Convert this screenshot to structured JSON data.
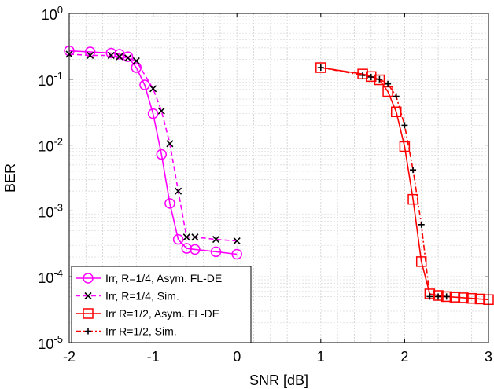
{
  "chart_data": {
    "type": "line",
    "xlabel": "SNR [dB]",
    "ylabel": "BER",
    "xlim": [
      -2,
      3
    ],
    "ylim": [
      1e-05,
      1
    ],
    "yscale": "log",
    "grid": true,
    "legend_position": "bottom-left",
    "xticks": [
      {
        "value": -2,
        "label": "-2"
      },
      {
        "value": -1,
        "label": "-1"
      },
      {
        "value": 0,
        "label": "0"
      },
      {
        "value": 1,
        "label": "1"
      },
      {
        "value": 2,
        "label": "2"
      },
      {
        "value": 3,
        "label": "3"
      }
    ],
    "yticks": [
      {
        "value": 1,
        "base": "10",
        "exp": "0"
      },
      {
        "value": 0.1,
        "base": "10",
        "exp": "-1"
      },
      {
        "value": 0.01,
        "base": "10",
        "exp": "-2"
      },
      {
        "value": 0.001,
        "base": "10",
        "exp": "-3"
      },
      {
        "value": 0.0001,
        "base": "10",
        "exp": "-4"
      },
      {
        "value": 1e-05,
        "base": "10",
        "exp": "-5"
      }
    ],
    "series": [
      {
        "name": "Irr, R=1/4, Asym. FL-DE",
        "color": "#ff00ff",
        "line": "solid",
        "marker": "circle",
        "x": [
          -2.0,
          -1.75,
          -1.5,
          -1.4,
          -1.3,
          -1.2,
          -1.1,
          -1.0,
          -0.9,
          -0.8,
          -0.7,
          -0.6,
          -0.5,
          -0.25,
          0.0
        ],
        "y": [
          0.27,
          0.26,
          0.25,
          0.24,
          0.22,
          0.15,
          0.082,
          0.03,
          0.0072,
          0.0013,
          0.00037,
          0.00027,
          0.00026,
          0.00024,
          0.00022
        ]
      },
      {
        "name": "Irr, R=1/4, Sim.",
        "color": "#ff00ff",
        "line": "dashed",
        "marker": "x",
        "x": [
          -2.0,
          -1.75,
          -1.5,
          -1.4,
          -1.3,
          -1.2,
          -1.0,
          -0.9,
          -0.8,
          -0.7,
          -0.6,
          -0.5,
          -0.25,
          0.0
        ],
        "y": [
          0.24,
          0.23,
          0.23,
          0.22,
          0.21,
          0.19,
          0.072,
          0.033,
          0.0105,
          0.002,
          0.0004,
          0.0004,
          0.00037,
          0.00035
        ]
      },
      {
        "name": "Irr R=1/2, Asym. FL-DE",
        "color": "#ff0000",
        "line": "solid",
        "marker": "square",
        "x": [
          1.0,
          1.5,
          1.6,
          1.7,
          1.8,
          1.9,
          2.0,
          2.1,
          2.2,
          2.3,
          2.4,
          2.5,
          2.6,
          2.7,
          2.8,
          2.9,
          3.0
        ],
        "y": [
          0.15,
          0.12,
          0.11,
          0.098,
          0.065,
          0.032,
          0.0095,
          0.0015,
          0.00017,
          5.5e-05,
          5.2e-05,
          5e-05,
          4.9e-05,
          4.8e-05,
          4.7e-05,
          4.6e-05,
          4.5e-05
        ]
      },
      {
        "name": "Irr R=1/2, Sim.",
        "color": "#ff0000",
        "line": "dashdot",
        "marker": "plus",
        "x": [
          1.0,
          1.5,
          1.6,
          1.7,
          1.8,
          1.9,
          2.0,
          2.1,
          2.2,
          2.3,
          2.4,
          2.5
        ],
        "y": [
          0.15,
          0.115,
          0.108,
          0.1,
          0.085,
          0.055,
          0.02,
          0.0042,
          0.00062,
          5e-05,
          5e-05,
          5e-05
        ]
      }
    ]
  }
}
